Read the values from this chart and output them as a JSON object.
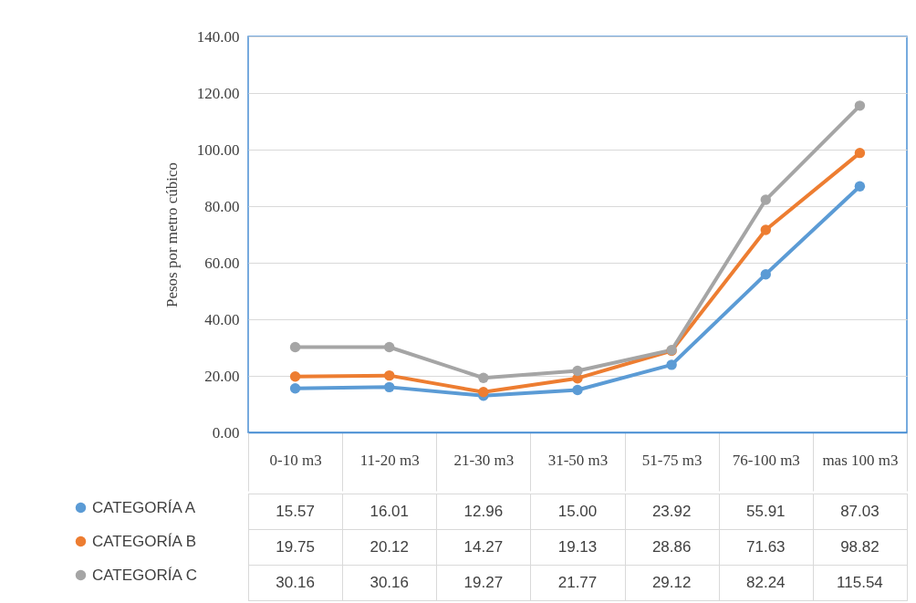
{
  "chart_data": {
    "type": "line",
    "ylabel": "Pesos por metro cúbico",
    "categories": [
      "0-10 m3",
      "11-20 m3",
      "21-30 m3",
      "31-50 m3",
      "51-75 m3",
      "76-100 m3",
      "mas 100 m3"
    ],
    "series": [
      {
        "name": "CATEGORÍA A",
        "color": "#5b9bd5",
        "values": [
          15.57,
          16.01,
          12.96,
          15.0,
          23.92,
          55.91,
          87.03
        ],
        "value_labels": [
          "15.57",
          "16.01",
          "12.96",
          "15.00",
          "23.92",
          "55.91",
          "87.03"
        ]
      },
      {
        "name": "CATEGORÍA B",
        "color": "#ed7d31",
        "values": [
          19.75,
          20.12,
          14.27,
          19.13,
          28.86,
          71.63,
          98.82
        ],
        "value_labels": [
          "19.75",
          "20.12",
          "14.27",
          "19.13",
          "28.86",
          "71.63",
          "98.82"
        ]
      },
      {
        "name": "CATEGORÍA C",
        "color": "#a5a5a5",
        "values": [
          30.16,
          30.16,
          19.27,
          21.77,
          29.12,
          82.24,
          115.54
        ],
        "value_labels": [
          "30.16",
          "30.16",
          "19.27",
          "21.77",
          "29.12",
          "82.24",
          "115.54"
        ]
      }
    ],
    "ylim": [
      0,
      140
    ],
    "yticks": [
      {
        "value": 0,
        "label": "0.00"
      },
      {
        "value": 20,
        "label": "20.00"
      },
      {
        "value": 40,
        "label": "40.00"
      },
      {
        "value": 60,
        "label": "60.00"
      },
      {
        "value": 80,
        "label": "80.00"
      },
      {
        "value": 100,
        "label": "100.00"
      },
      {
        "value": 120,
        "label": "120.00"
      },
      {
        "value": 140,
        "label": "140.00"
      }
    ],
    "grid": "y",
    "marker": "circle",
    "line_style": "solid",
    "legend": "bottom left"
  }
}
